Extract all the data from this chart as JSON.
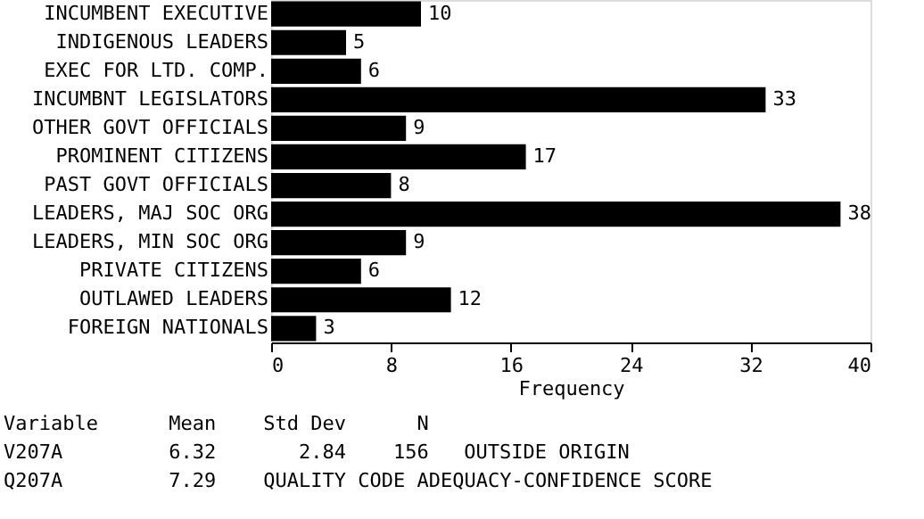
{
  "chart_data": {
    "type": "bar",
    "orientation": "horizontal",
    "xlabel": "Frequency",
    "categories": [
      "INCUMBENT EXECUTIVE",
      "INDIGENOUS LEADERS",
      "EXEC FOR LTD. COMP.",
      "INCUMBNT LEGISLATORS",
      "OTHER GOVT OFFICIALS",
      "PROMINENT CITIZENS",
      "PAST GOVT OFFICIALS",
      "LEADERS, MAJ SOC ORG",
      "LEADERS, MIN SOC ORG",
      "PRIVATE CITIZENS",
      "OUTLAWED LEADERS",
      "FOREIGN NATIONALS"
    ],
    "values": [
      10,
      5,
      6,
      33,
      9,
      17,
      8,
      38,
      9,
      6,
      12,
      3
    ],
    "color": "#000000",
    "data_labels": true,
    "xlim": [
      0,
      40
    ],
    "xticks": [
      0,
      8,
      16,
      24,
      32,
      40
    ],
    "grid": false,
    "annotations": [
      "Variable      Mean    Std Dev      N",
      "V207A         6.32       2.84    156   OUTSIDE ORIGIN",
      "Q207A         7.29    QUALITY CODE ADEQUACY-CONFIDENCE SCORE"
    ]
  }
}
